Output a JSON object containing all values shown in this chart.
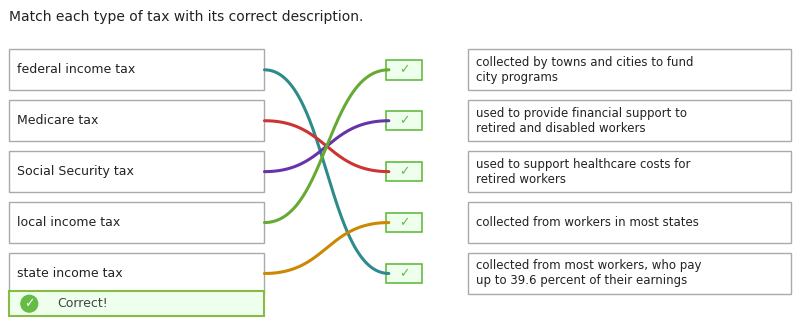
{
  "title": "Match each type of tax with its correct description.",
  "left_labels": [
    "federal income tax",
    "Medicare tax",
    "Social Security tax",
    "local income tax",
    "state income tax"
  ],
  "right_labels": [
    "collected by towns and cities to fund\ncity programs",
    "used to provide financial support to\nretired and disabled workers",
    "used to support healthcare costs for\nretired workers",
    "collected from workers in most states",
    "collected from most workers, who pay\nup to 39.6 percent of their earnings"
  ],
  "connections": [
    {
      "from": 0,
      "to": 4,
      "color": "#2e8b8b"
    },
    {
      "from": 1,
      "to": 2,
      "color": "#cc3333"
    },
    {
      "from": 2,
      "to": 1,
      "color": "#6633aa"
    },
    {
      "from": 3,
      "to": 0,
      "color": "#66aa33"
    },
    {
      "from": 4,
      "to": 3,
      "color": "#cc8800"
    }
  ],
  "checkbox_color": "#66bb44",
  "checkbox_bg": "#eeffee",
  "box_border_color": "#aaaaaa",
  "box_bg": "#ffffff",
  "correct_bg": "#eeffee",
  "correct_border": "#88bb44",
  "correct_text": "Correct!",
  "correct_icon_color": "#66bb44",
  "title_fontsize": 10,
  "label_fontsize": 9,
  "fig_bg": "#ffffff"
}
